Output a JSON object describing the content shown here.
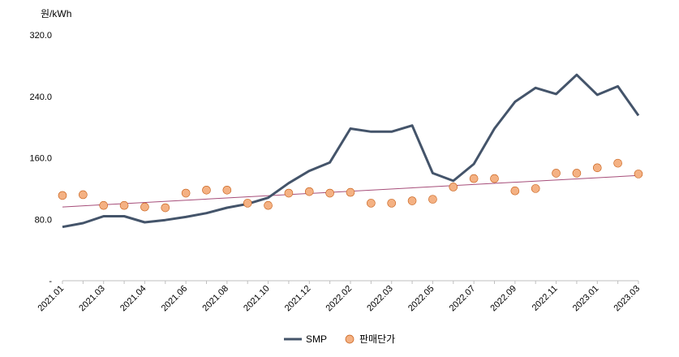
{
  "chart_data": {
    "type": "line",
    "unit_label": "원/kWh",
    "ylim": [
      0,
      320
    ],
    "y_ticks": [
      {
        "value": 0,
        "label": "-"
      },
      {
        "value": 80,
        "label": "80.0"
      },
      {
        "value": 160,
        "label": "160.0"
      },
      {
        "value": 240,
        "label": "240.0"
      },
      {
        "value": 320,
        "label": "320.0"
      }
    ],
    "x_tick_labels": [
      "2021.01",
      "2021.03",
      "2021.04",
      "2021.06",
      "2021.08",
      "2021.10",
      "2021.12",
      "2022.02",
      "2022.03",
      "2022.05",
      "2022.07",
      "2022.09",
      "2022.11",
      "2023.01",
      "2023.03"
    ],
    "n_points": 29,
    "series": [
      {
        "name": "SMP",
        "kind": "line",
        "color": "#44546a",
        "values": [
          70,
          75,
          84,
          84,
          76,
          79,
          83,
          88,
          95,
          100,
          108,
          127,
          143,
          154,
          198,
          194,
          194,
          202,
          140,
          130,
          152,
          198,
          233,
          251,
          243,
          268,
          242,
          253,
          215
        ]
      },
      {
        "name": "판매단가",
        "kind": "scatter",
        "color": "#f4b183",
        "edge_color": "#c55a11",
        "values": [
          111,
          112,
          98,
          98,
          96,
          95,
          114,
          118,
          118,
          101,
          98,
          114,
          116,
          114,
          115,
          101,
          101,
          104,
          106,
          122,
          133,
          133,
          117,
          120,
          140,
          140,
          147,
          153,
          139
        ]
      }
    ],
    "trendline": {
      "color": "#a64d79",
      "start": 96,
      "end": 137
    },
    "legend_position": "bottom-center",
    "grid": false
  }
}
